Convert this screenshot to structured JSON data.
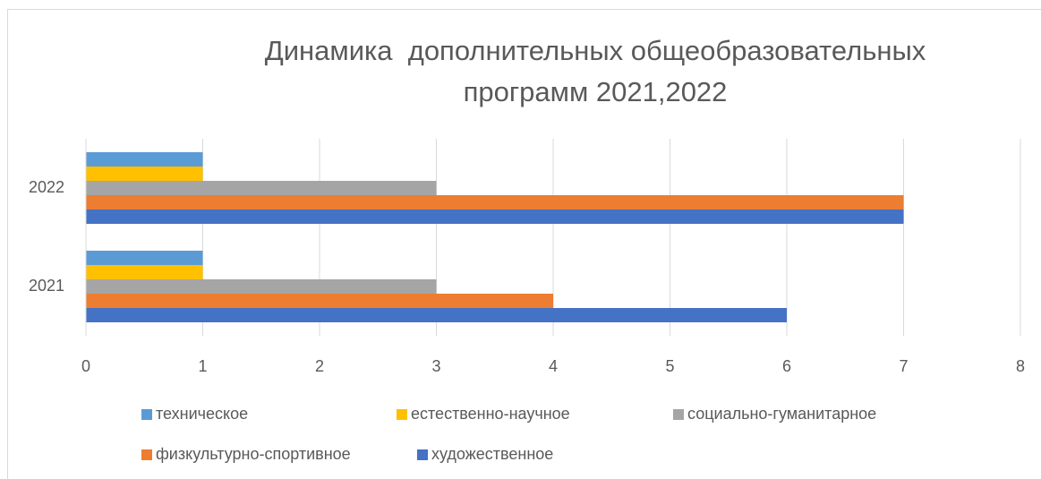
{
  "chart_data": {
    "type": "hbar",
    "title": "Динамика  дополнительных общеобразовательных программ 2021,2022",
    "categories": [
      "2021",
      "2022"
    ],
    "series": [
      {
        "name": "техническое",
        "color": "#5B9BD5",
        "values": [
          1,
          1
        ]
      },
      {
        "name": "естественно-научное",
        "color": "#FFC000",
        "values": [
          1,
          1
        ]
      },
      {
        "name": "социально-гуманитарное",
        "color": "#A5A5A5",
        "values": [
          3,
          3
        ]
      },
      {
        "name": "физкультурно-спортивное",
        "color": "#ED7D31",
        "values": [
          4,
          7
        ]
      },
      {
        "name": "художественное",
        "color": "#4472C4",
        "values": [
          6,
          7
        ]
      }
    ],
    "xlim": [
      0,
      8
    ],
    "xticks": [
      0,
      1,
      2,
      3,
      4,
      5,
      6,
      7,
      8
    ],
    "grid": true,
    "legend": "bottom"
  }
}
